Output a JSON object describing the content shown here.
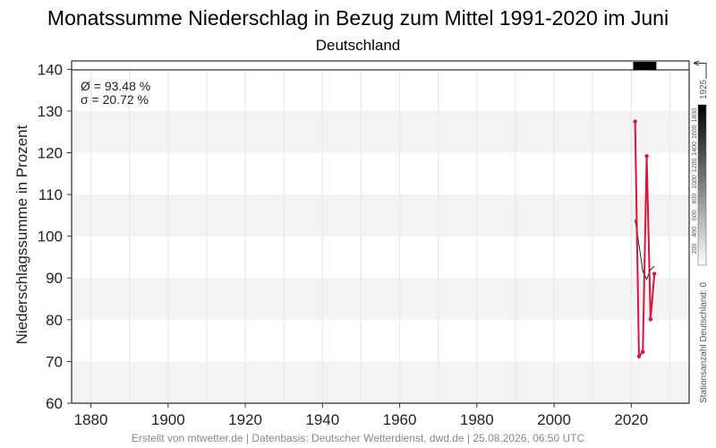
{
  "title": "Monatssumme Niederschlag in Bezug zum Mittel 1991-2020 im Juni",
  "subtitle": "Deutschland",
  "footer": "Erstellt von mtwetter.de | Datenbasis: Deutscher Wetterdienst, dwd.de | 25.08.2026, 06:50 UTC",
  "stats": {
    "mean": "Ø = 93.48 %",
    "sigma": "σ = 20.72 %"
  },
  "colors": {
    "series": "#dc143c",
    "trend": "#222222",
    "band": "#f3f3f3",
    "grid": "#e6e6e6"
  },
  "chart_data": {
    "type": "line",
    "ylabel": "Niederschlagssumme in Prozent",
    "xlim": [
      1875,
      2035
    ],
    "ylim": [
      60,
      142
    ],
    "xticks": [
      1880,
      1900,
      1920,
      1940,
      1960,
      1980,
      2000,
      2020
    ],
    "yticks": [
      60,
      70,
      80,
      90,
      100,
      110,
      120,
      130,
      140
    ],
    "grid": true,
    "bands": [
      [
        60,
        70
      ],
      [
        80,
        90
      ],
      [
        100,
        110
      ],
      [
        120,
        130
      ]
    ],
    "series": [
      {
        "x": [
          2021,
          2022,
          2023,
          2024,
          2025,
          2026
        ],
        "values": [
          127.5,
          71.2,
          72.3,
          119.2,
          80.1,
          91.0
        ]
      }
    ],
    "trend": {
      "x": [
        2021,
        2022,
        2023,
        2024,
        2025,
        2026
      ],
      "values": [
        104.0,
        98.0,
        91.5,
        89.7,
        92.0,
        92.8
      ]
    },
    "station_bar": {
      "years": [
        2021,
        2026
      ],
      "color": "#000000"
    },
    "colorbar": {
      "label": "Stationsanzahl Deutschland: 0",
      "max_label": "1925",
      "ticks": [
        "200",
        "400",
        "600",
        "800",
        "1000",
        "1200",
        "1400",
        "1600",
        "1800"
      ],
      "min": 0,
      "max": 1925
    }
  }
}
